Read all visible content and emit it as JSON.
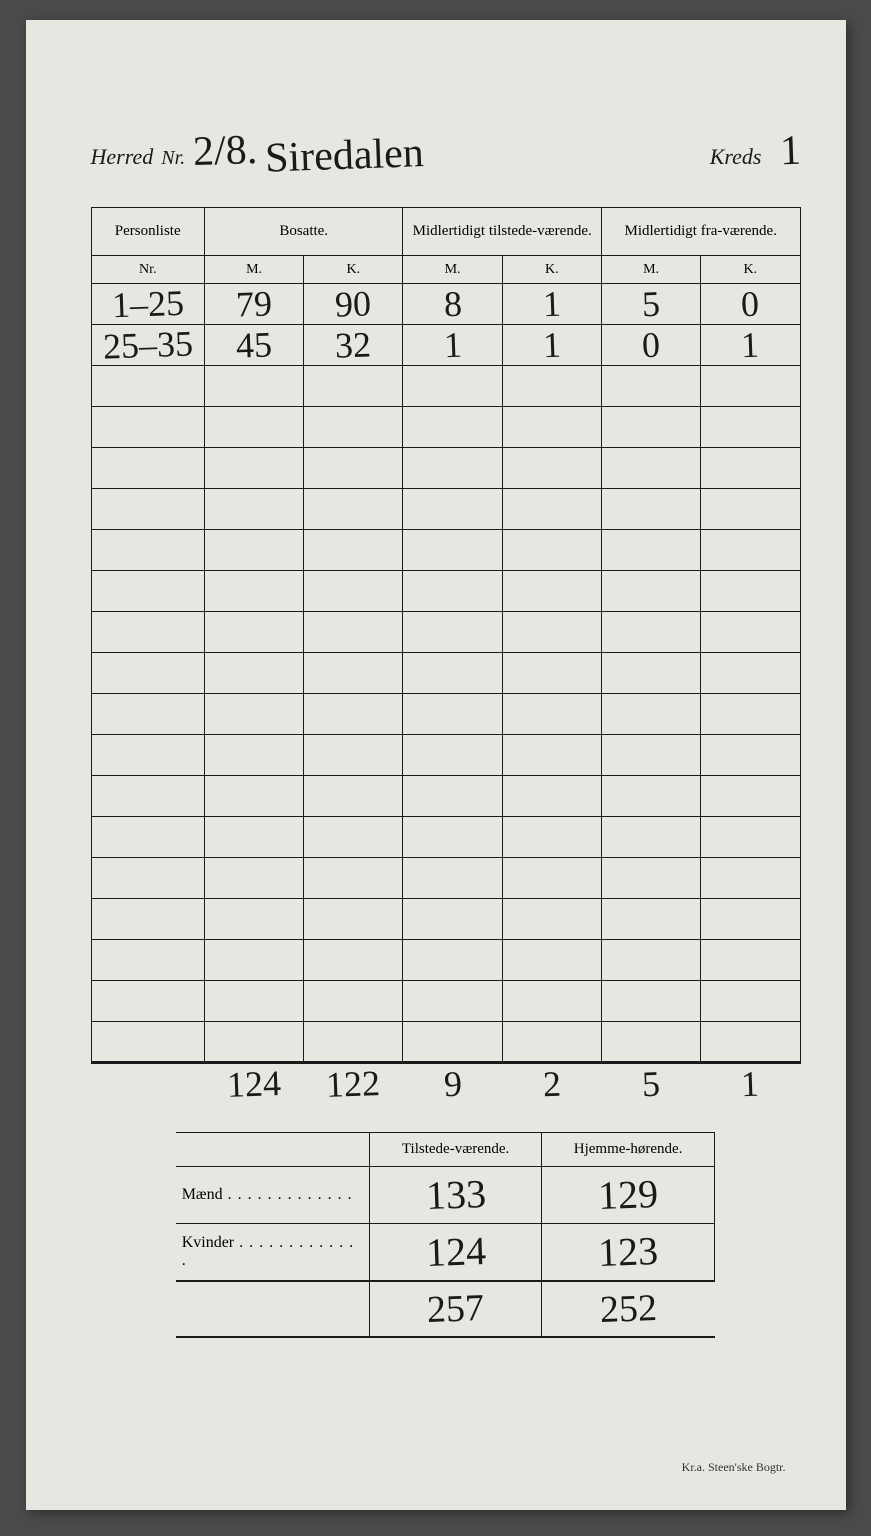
{
  "header": {
    "herred_label": "Herred",
    "nr_label": "Nr.",
    "herred_nr": "2/8.",
    "herred_name": "Siredalen",
    "kreds_label": "Kreds",
    "kreds_nr": "1"
  },
  "main_table": {
    "columns": {
      "personliste": "Personliste",
      "nr": "Nr.",
      "bosatte": "Bosatte.",
      "midl_tilstede": "Midlertidigt tilstede-værende.",
      "midl_fra": "Midlertidigt fra-værende.",
      "m": "M.",
      "k": "K."
    },
    "rows": [
      {
        "nr": "1–25",
        "bm": "79",
        "bk": "90",
        "tm": "8",
        "tk": "1",
        "fm": "5",
        "fk": "0"
      },
      {
        "nr": "25–35",
        "bm": "45",
        "bk": "32",
        "tm": "1",
        "tk": "1",
        "fm": "0",
        "fk": "1"
      }
    ],
    "empty_rows": 17,
    "totals": {
      "bm": "124",
      "bk": "122",
      "tm": "9",
      "tk": "2",
      "fm": "5",
      "fk": "1"
    }
  },
  "summary": {
    "col_tilstede": "Tilstede-værende.",
    "col_hjemme": "Hjemme-hørende.",
    "rows": [
      {
        "label": "Mænd",
        "t": "133",
        "h": "129"
      },
      {
        "label": "Kvinder",
        "t": "124",
        "h": "123"
      }
    ],
    "totals": {
      "t": "257",
      "h": "252"
    }
  },
  "footer": "Kr.a.  Steen'ske Bogtr."
}
